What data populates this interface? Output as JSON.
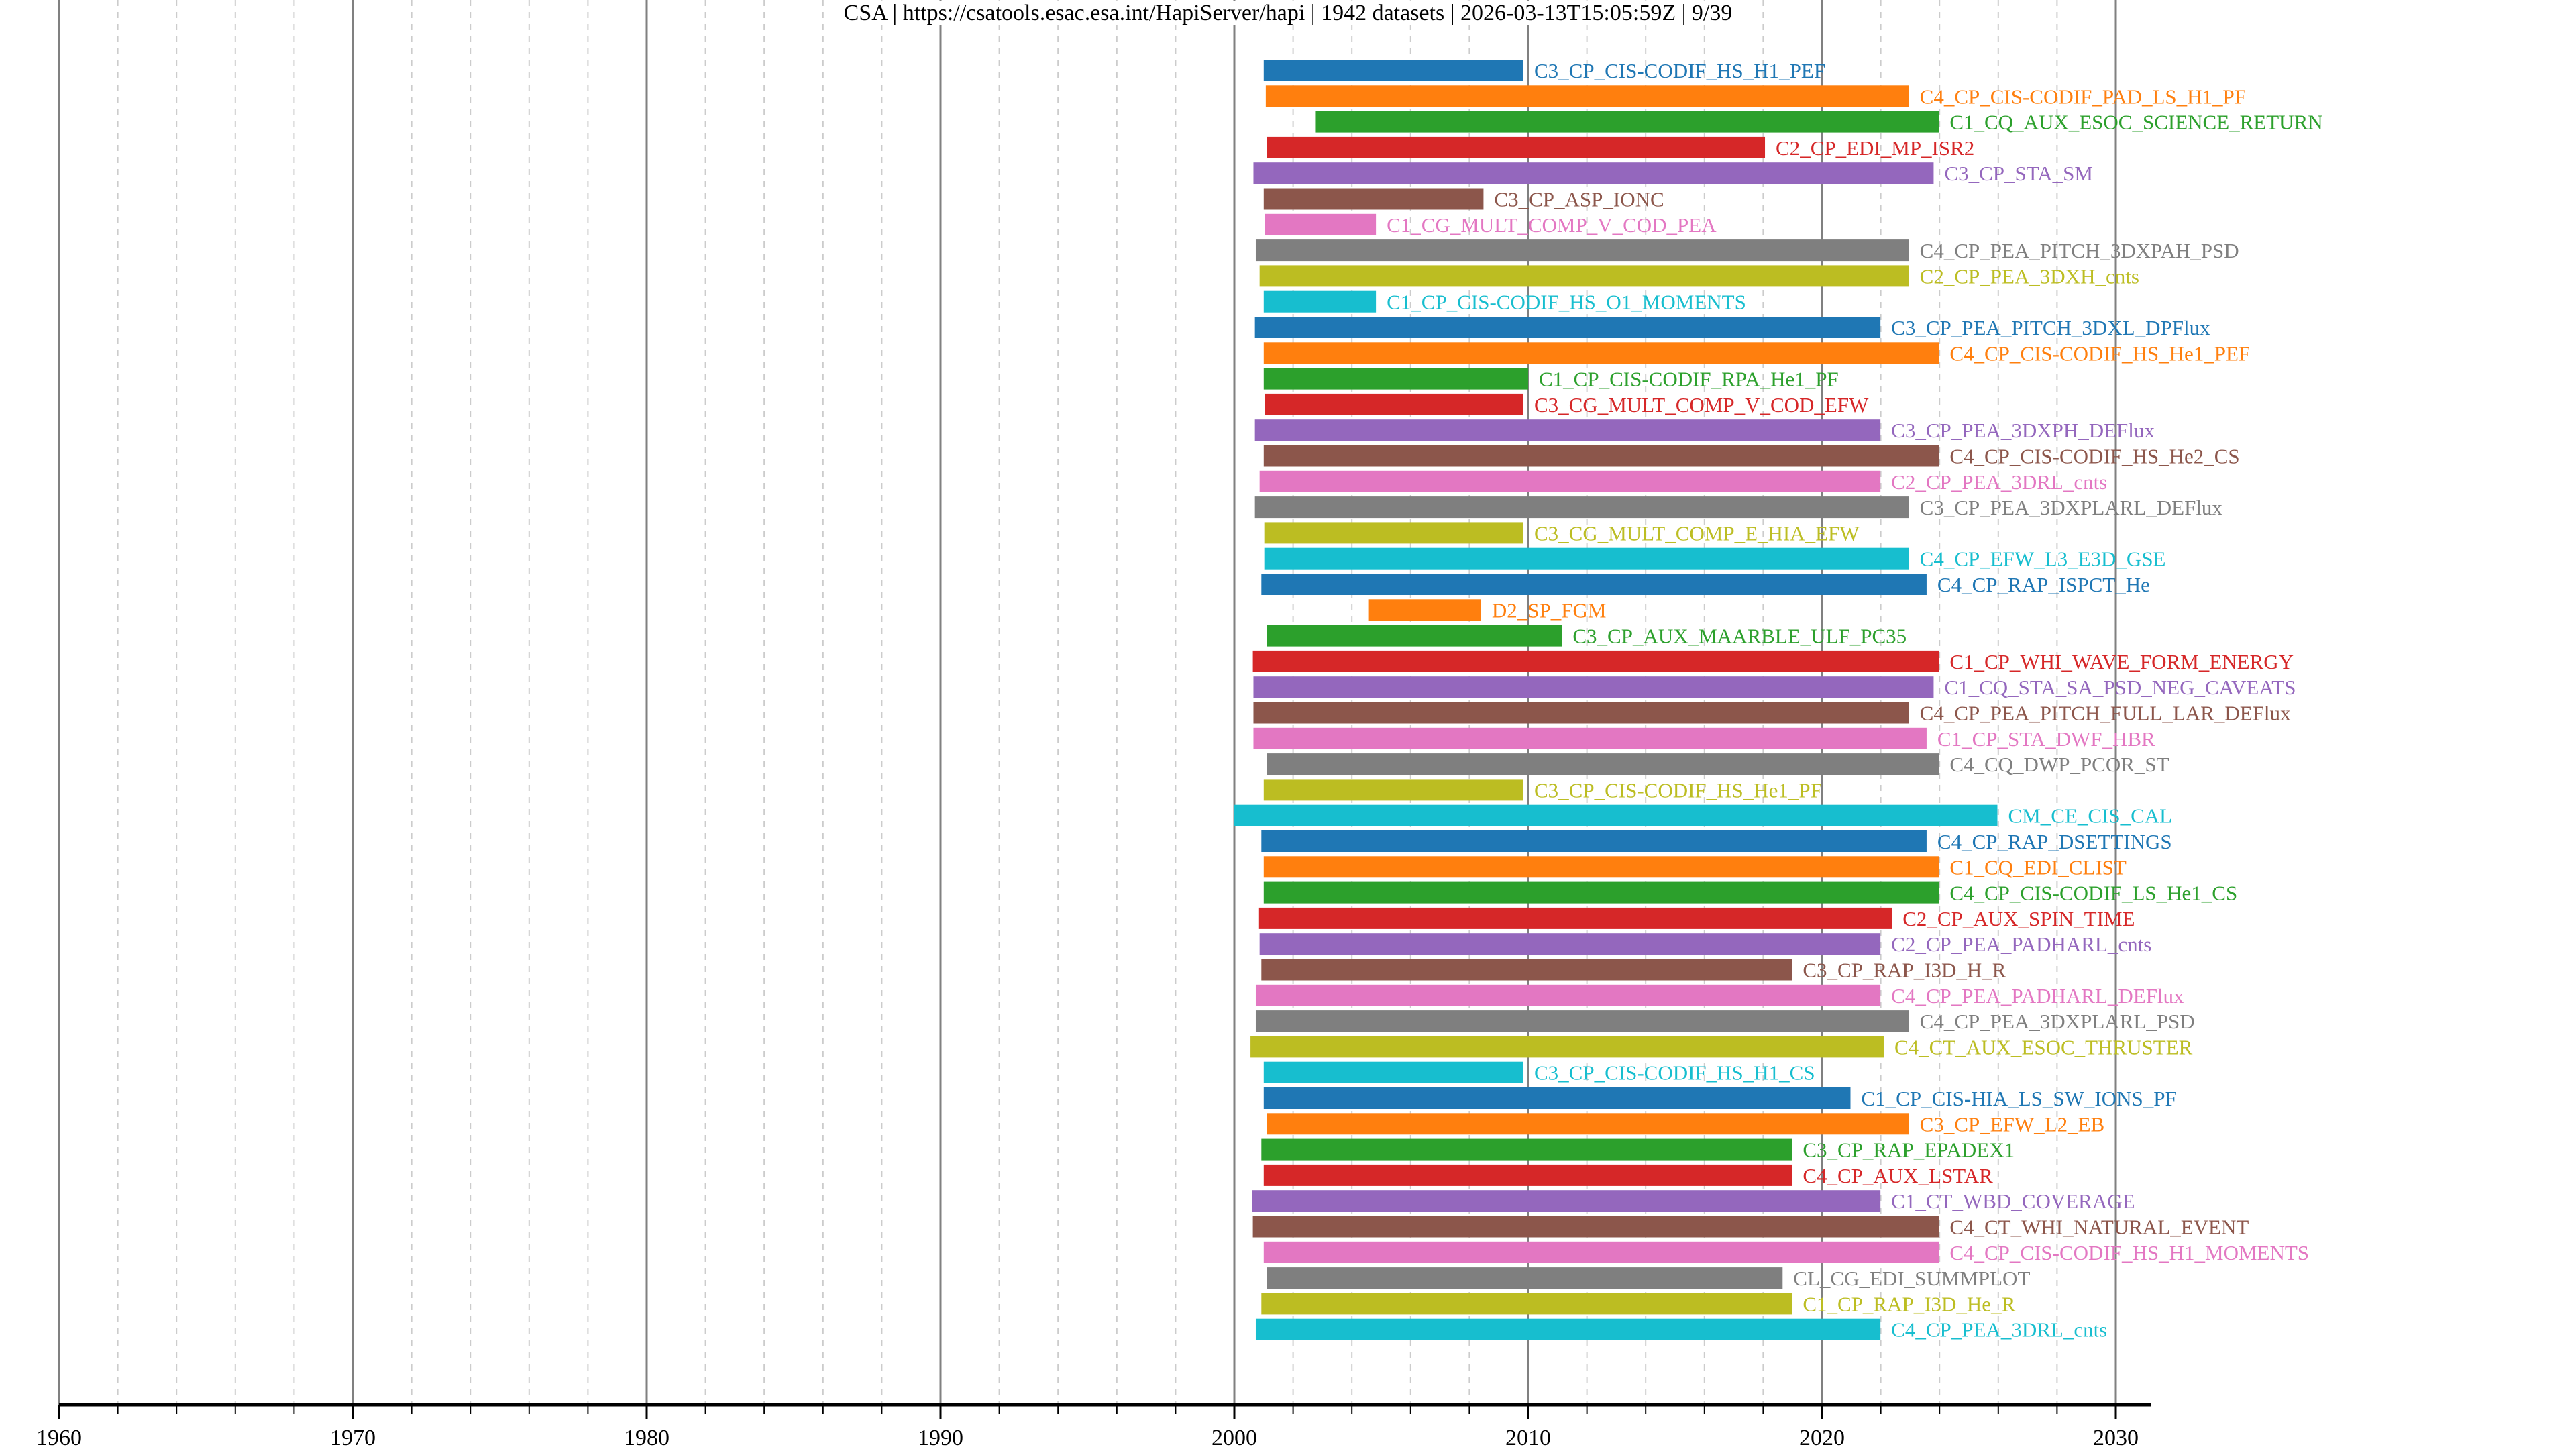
{
  "chart_data": {
    "type": "bar",
    "orientation": "horizontal-range",
    "title": "CSA | https://csatools.esac.esa.int/HapiServer/hapi | 1942 datasets | 2026-03-13T15:05:59Z | 9/39",
    "xlabel": "",
    "ylabel": "",
    "xlim": [
      1960,
      2031.2
    ],
    "x_ticks_major": [
      1960,
      1970,
      1980,
      1990,
      2000,
      2010,
      2020,
      2030
    ],
    "x_tick_labels": [
      "1960",
      "1970",
      "1980",
      "1990",
      "2000",
      "2010",
      "2020",
      "2030"
    ],
    "minor_tick_step": 2,
    "grid": true,
    "palette": [
      "#1f77b4",
      "#ff7f0e",
      "#2ca02c",
      "#d62728",
      "#9467bd",
      "#8c564b",
      "#e377c2",
      "#7f7f7f",
      "#bcbd22",
      "#17becf"
    ],
    "series": [
      {
        "name": "C3_CP_CIS-CODIF_HS_H1_PEF",
        "start": 2001.0,
        "end": 2009.84
      },
      {
        "name": "C4_CP_CIS-CODIF_PAD_LS_H1_PF",
        "start": 2001.07,
        "end": 2022.96
      },
      {
        "name": "C1_CQ_AUX_ESOC_SCIENCE_RETURN",
        "start": 2002.75,
        "end": 2023.98
      },
      {
        "name": "C2_CP_EDI_MP_ISR2",
        "start": 2001.1,
        "end": 2018.06
      },
      {
        "name": "C3_CP_STA_SM",
        "start": 2000.65,
        "end": 2023.8
      },
      {
        "name": "C3_CP_ASP_IONC",
        "start": 2001.0,
        "end": 2008.48
      },
      {
        "name": "C1_CG_MULT_COMP_V_COD_PEA",
        "start": 2001.05,
        "end": 2004.82
      },
      {
        "name": "C4_CP_PEA_PITCH_3DXPAH_PSD",
        "start": 2000.73,
        "end": 2022.96
      },
      {
        "name": "C2_CP_PEA_3DXH_cnts",
        "start": 2000.86,
        "end": 2022.96
      },
      {
        "name": "C1_CP_CIS-CODIF_HS_O1_MOMENTS",
        "start": 2001.0,
        "end": 2004.82
      },
      {
        "name": "C3_CP_PEA_PITCH_3DXL_DPFlux",
        "start": 2000.7,
        "end": 2021.99
      },
      {
        "name": "C4_CP_CIS-CODIF_HS_He1_PEF",
        "start": 2001.0,
        "end": 2023.98
      },
      {
        "name": "C1_CP_CIS-CODIF_RPA_He1_PF",
        "start": 2001.0,
        "end": 2010.0
      },
      {
        "name": "C3_CG_MULT_COMP_V_COD_EFW",
        "start": 2001.05,
        "end": 2009.84
      },
      {
        "name": "C3_CP_PEA_3DXPH_DEFlux",
        "start": 2000.7,
        "end": 2021.99
      },
      {
        "name": "C4_CP_CIS-CODIF_HS_He2_CS",
        "start": 2001.0,
        "end": 2023.98
      },
      {
        "name": "C2_CP_PEA_3DRL_cnts",
        "start": 2000.86,
        "end": 2021.99
      },
      {
        "name": "C3_CP_PEA_3DXPLARL_DEFlux",
        "start": 2000.7,
        "end": 2022.96
      },
      {
        "name": "C3_CG_MULT_COMP_E_HIA_EFW",
        "start": 2001.02,
        "end": 2009.84
      },
      {
        "name": "C4_CP_EFW_L3_E3D_GSE",
        "start": 2001.02,
        "end": 2022.96
      },
      {
        "name": "C4_CP_RAP_ISPCT_He",
        "start": 2000.92,
        "end": 2023.56
      },
      {
        "name": "D2_SP_FGM",
        "start": 2004.58,
        "end": 2008.4
      },
      {
        "name": "C3_CP_AUX_MAARBLE_ULF_PC35",
        "start": 2001.1,
        "end": 2011.15
      },
      {
        "name": "C1_CP_WHI_WAVE_FORM_ENERGY",
        "start": 2000.63,
        "end": 2023.98
      },
      {
        "name": "C1_CQ_STA_SA_PSD_NEG_CAVEATS",
        "start": 2000.65,
        "end": 2023.8
      },
      {
        "name": "C4_CP_PEA_PITCH_FULL_LAR_DEFlux",
        "start": 2000.65,
        "end": 2022.96
      },
      {
        "name": "C1_CP_STA_DWF_HBR",
        "start": 2000.65,
        "end": 2023.56
      },
      {
        "name": "C4_CQ_DWP_PCOR_ST",
        "start": 2001.1,
        "end": 2023.98
      },
      {
        "name": "C3_CP_CIS-CODIF_HS_He1_PF",
        "start": 2001.0,
        "end": 2009.84
      },
      {
        "name": "CM_CE_CIS_CAL",
        "start": 2000.0,
        "end": 2025.97
      },
      {
        "name": "C4_CP_RAP_DSETTINGS",
        "start": 2000.92,
        "end": 2023.56
      },
      {
        "name": "C1_CQ_EDI_CLIST",
        "start": 2001.0,
        "end": 2023.98
      },
      {
        "name": "C4_CP_CIS-CODIF_LS_He1_CS",
        "start": 2001.0,
        "end": 2023.98
      },
      {
        "name": "C2_CP_AUX_SPIN_TIME",
        "start": 2000.84,
        "end": 2022.38
      },
      {
        "name": "C2_CP_PEA_PADHARL_cnts",
        "start": 2000.86,
        "end": 2021.99
      },
      {
        "name": "C3_CP_RAP_I3D_H_R",
        "start": 2000.92,
        "end": 2018.98
      },
      {
        "name": "C4_CP_PEA_PADHARL_DEFlux",
        "start": 2000.73,
        "end": 2021.99
      },
      {
        "name": "C4_CP_PEA_3DXPLARL_PSD",
        "start": 2000.73,
        "end": 2022.96
      },
      {
        "name": "C4_CT_AUX_ESOC_THRUSTER",
        "start": 2000.55,
        "end": 2022.1
      },
      {
        "name": "C3_CP_CIS-CODIF_HS_H1_CS",
        "start": 2001.0,
        "end": 2009.84
      },
      {
        "name": "C1_CP_CIS-HIA_LS_SW_IONS_PF",
        "start": 2001.0,
        "end": 2020.97
      },
      {
        "name": "C3_CP_EFW_L2_EB",
        "start": 2001.1,
        "end": 2022.96
      },
      {
        "name": "C3_CP_RAP_EPADEX1",
        "start": 2000.92,
        "end": 2018.98
      },
      {
        "name": "C4_CP_AUX_LSTAR",
        "start": 2001.0,
        "end": 2018.98
      },
      {
        "name": "C1_CT_WBD_COVERAGE",
        "start": 2000.6,
        "end": 2021.99
      },
      {
        "name": "C4_CT_WHI_NATURAL_EVENT",
        "start": 2000.63,
        "end": 2023.98
      },
      {
        "name": "C4_CP_CIS-CODIF_HS_H1_MOMENTS",
        "start": 2001.0,
        "end": 2023.98
      },
      {
        "name": "CL_CG_EDI_SUMMPLOT",
        "start": 2001.1,
        "end": 2018.66
      },
      {
        "name": "C1_CP_RAP_I3D_He_R",
        "start": 2000.92,
        "end": 2018.98
      },
      {
        "name": "C4_CP_PEA_3DRL_cnts",
        "start": 2000.73,
        "end": 2021.99
      }
    ]
  }
}
